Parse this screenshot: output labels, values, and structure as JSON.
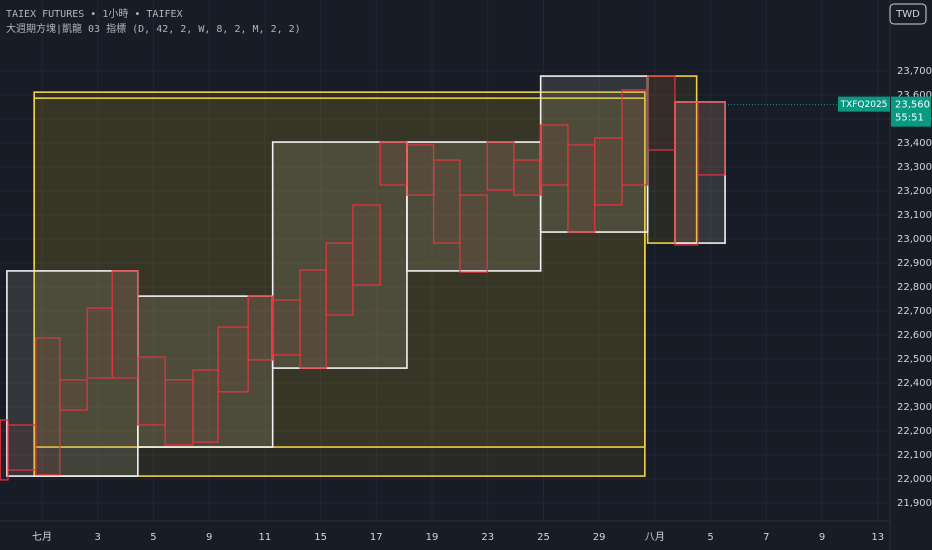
{
  "chart_data": {
    "type": "range-boxes",
    "title": "TAIEX FUTURES • 1小時 • TAIFEX",
    "subtitle": "大週期方塊|凱龍 03 指標 (D, 42, 2, W, 8, 2, M, 2, 2)",
    "currency": "TWD",
    "categories": [
      "七月",
      "3",
      "5",
      "9",
      "11",
      "15",
      "17",
      "19",
      "23",
      "25",
      "29",
      "八月",
      "5",
      "7",
      "9",
      "13"
    ],
    "xlim": [
      -0.754,
      15.22
    ],
    "ylim": [
      21829,
      23996
    ],
    "yticks": [
      {
        "value": 21900,
        "label": "21,900"
      },
      {
        "value": 22000,
        "label": "22,000"
      },
      {
        "value": 22100,
        "label": "22,100"
      },
      {
        "value": 22200,
        "label": "22,200"
      },
      {
        "value": 22300,
        "label": "22,300"
      },
      {
        "value": 22400,
        "label": "22,400"
      },
      {
        "value": 22500,
        "label": "22,500"
      },
      {
        "value": 22600,
        "label": "22,600"
      },
      {
        "value": 22700,
        "label": "22,700"
      },
      {
        "value": 22800,
        "label": "22,800"
      },
      {
        "value": 22900,
        "label": "22,900"
      },
      {
        "value": 23000,
        "label": "23,000"
      },
      {
        "value": 23100,
        "label": "23,100"
      },
      {
        "value": 23200,
        "label": "23,200"
      },
      {
        "value": 23300,
        "label": "23,300"
      },
      {
        "value": 23400,
        "label": "23,400"
      },
      {
        "value": 23500,
        "label": "23,500"
      },
      {
        "value": 23600,
        "label": "23,600"
      },
      {
        "value": 23700,
        "label": "23,700"
      }
    ],
    "grid": true,
    "box_groups": [
      {
        "color": "#f0d040",
        "fill": "rgba(120,110,40,0.18)",
        "boxes": [
          {
            "x": [
              -0.14,
              10.82
            ],
            "y": [
              22012,
              23612
            ]
          },
          {
            "x": [
              -0.14,
              10.82
            ],
            "y": [
              22133,
              23587
            ]
          },
          {
            "x": [
              10.87,
              11.75
            ],
            "y": [
              22983,
              23679
            ]
          }
        ]
      },
      {
        "color": "#f2f2f2",
        "fill": "rgba(180,175,150,0.18)",
        "boxes": [
          {
            "x": [
              -0.63,
              1.72
            ],
            "y": [
              22012,
              22867
            ]
          },
          {
            "x": [
              1.72,
              4.14
            ],
            "y": [
              22133,
              22762
            ]
          },
          {
            "x": [
              4.14,
              6.55
            ],
            "y": [
              22462,
              23404
            ]
          },
          {
            "x": [
              6.55,
              8.95
            ],
            "y": [
              22867,
              23404
            ]
          },
          {
            "x": [
              8.95,
              10.87
            ],
            "y": [
              23029,
              23679
            ]
          },
          {
            "x": [
              11.36,
              12.26
            ],
            "y": [
              22983,
              23571
            ]
          }
        ]
      },
      {
        "color": "#e8343f",
        "fill": "rgba(200,60,60,0.08)",
        "boxes": [
          {
            "x": [
              -0.75,
              -0.61
            ],
            "y": [
              21996,
              22246
            ]
          },
          {
            "x": [
              -0.61,
              -0.11
            ],
            "y": [
              22037,
              22225
            ]
          },
          {
            "x": [
              -0.11,
              0.32
            ],
            "y": [
              22017,
              22588
            ]
          },
          {
            "x": [
              0.32,
              0.81
            ],
            "y": [
              22287,
              22413
            ]
          },
          {
            "x": [
              0.81,
              1.26
            ],
            "y": [
              22421,
              22712
            ]
          },
          {
            "x": [
              1.26,
              1.72
            ],
            "y": [
              22421,
              22867
            ]
          },
          {
            "x": [
              1.72,
              2.21
            ],
            "y": [
              22225,
              22508
            ]
          },
          {
            "x": [
              2.21,
              2.71
            ],
            "y": [
              22142,
              22413
            ]
          },
          {
            "x": [
              2.71,
              3.16
            ],
            "y": [
              22154,
              22454
            ]
          },
          {
            "x": [
              3.16,
              3.7
            ],
            "y": [
              22363,
              22633
            ]
          },
          {
            "x": [
              3.7,
              4.14
            ],
            "y": [
              22496,
              22762
            ]
          },
          {
            "x": [
              4.14,
              4.63
            ],
            "y": [
              22517,
              22746
            ]
          },
          {
            "x": [
              4.63,
              5.1
            ],
            "y": [
              22462,
              22871
            ]
          },
          {
            "x": [
              5.1,
              5.58
            ],
            "y": [
              22683,
              22983
            ]
          },
          {
            "x": [
              5.58,
              6.07
            ],
            "y": [
              22808,
              23142
            ]
          },
          {
            "x": [
              6.07,
              6.55
            ],
            "y": [
              23225,
              23404
            ]
          },
          {
            "x": [
              6.55,
              7.03
            ],
            "y": [
              23183,
              23392
            ]
          },
          {
            "x": [
              7.03,
              7.5
            ],
            "y": [
              22983,
              23329
            ]
          },
          {
            "x": [
              7.5,
              7.99
            ],
            "y": [
              22862,
              23183
            ]
          },
          {
            "x": [
              7.99,
              8.47
            ],
            "y": [
              23204,
              23404
            ]
          },
          {
            "x": [
              8.47,
              8.95
            ],
            "y": [
              23183,
              23329
            ]
          },
          {
            "x": [
              8.95,
              9.44
            ],
            "y": [
              23225,
              23475
            ]
          },
          {
            "x": [
              9.44,
              9.92
            ],
            "y": [
              23029,
              23392
            ]
          },
          {
            "x": [
              9.92,
              10.41
            ],
            "y": [
              23142,
              23421
            ]
          },
          {
            "x": [
              10.41,
              10.87
            ],
            "y": [
              23225,
              23621
            ]
          },
          {
            "x": [
              10.87,
              11.36
            ],
            "y": [
              23371,
              23679
            ]
          },
          {
            "x": [
              11.36,
              11.77
            ],
            "y": [
              22975,
              23571
            ]
          },
          {
            "x": [
              11.77,
              12.26
            ],
            "y": [
              23267,
              23571
            ]
          }
        ]
      }
    ],
    "last_price": {
      "symbol": "TXFQ2025",
      "value": 23560,
      "label": "23,560",
      "countdown": "55:51",
      "color": "#089981"
    }
  }
}
